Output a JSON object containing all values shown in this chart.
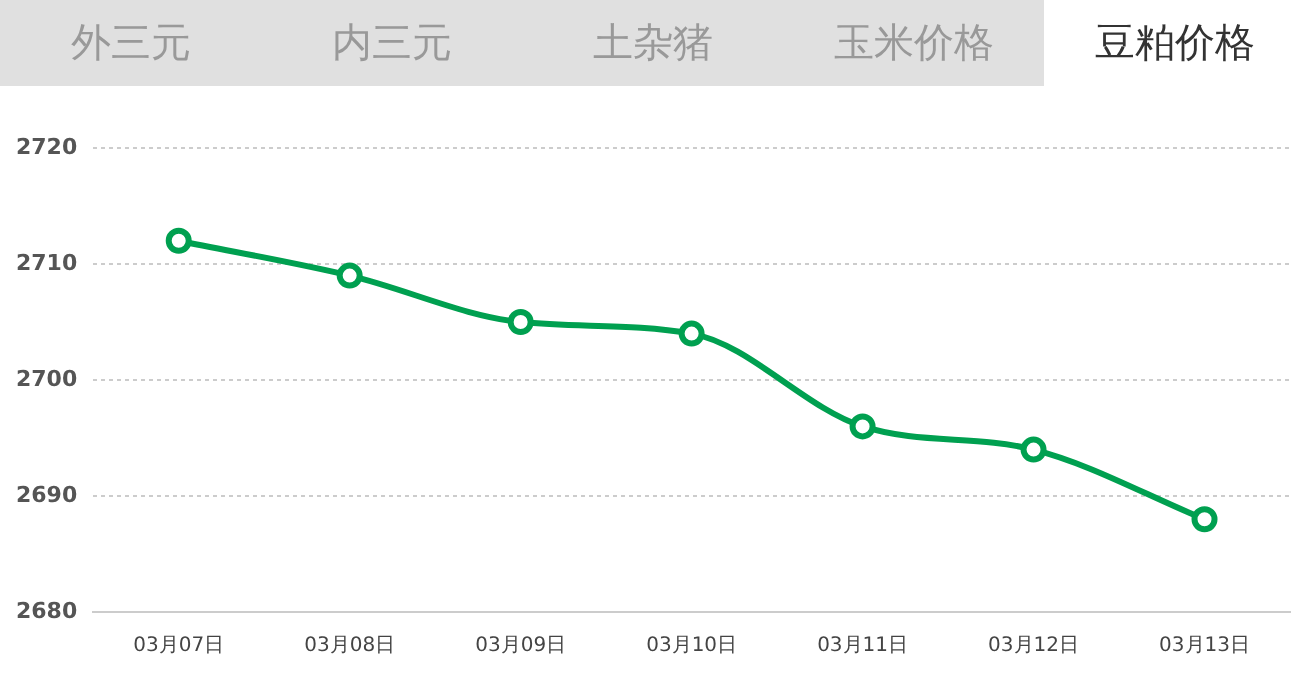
{
  "chart_data": {
    "type": "line",
    "title": "豆粕价格",
    "annotations": [
      "外三元",
      "内三元",
      "土杂猪",
      "玉米价格"
    ],
    "categories": [
      "03月07日",
      "03月08日",
      "03月09日",
      "03月10日",
      "03月11日",
      "03月12日",
      "03月13日"
    ],
    "series": [
      {
        "color": "#00a050",
        "values": [
          2712,
          2709,
          2705,
          2704,
          2696,
          2694,
          2688
        ]
      }
    ],
    "ylim": [
      2680,
      2720
    ],
    "yticks": [
      2680,
      2690,
      2700,
      2710,
      2720
    ],
    "grid": "y",
    "legend": false,
    "marker": "circle",
    "line_style": "solid"
  }
}
